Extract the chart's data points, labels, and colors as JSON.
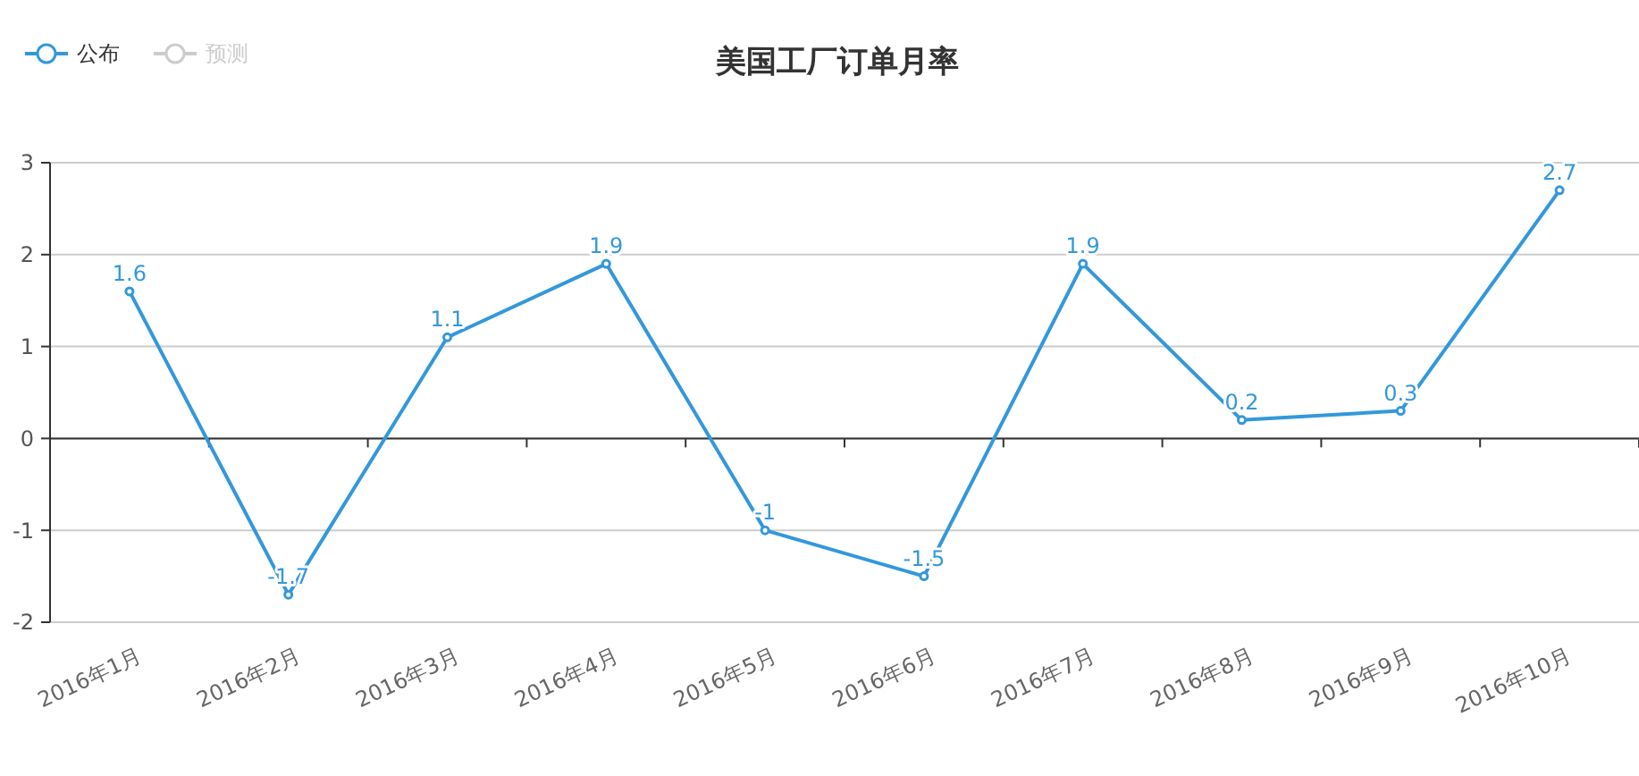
{
  "chart_data": {
    "type": "line",
    "title": "美国工厂订单月率",
    "categories": [
      "2016年1月",
      "2016年2月",
      "2016年3月",
      "2016年4月",
      "2016年5月",
      "2016年6月",
      "2016年7月",
      "2016年8月",
      "2016年9月",
      "2016年10月"
    ],
    "series": [
      {
        "name": "公布",
        "color": "#3398db",
        "values": [
          1.6,
          -1.7,
          1.1,
          1.9,
          -1,
          -1.5,
          1.9,
          0.2,
          0.3,
          2.7
        ]
      },
      {
        "name": "预测",
        "color": "#cccccc",
        "values": [
          null,
          null,
          null,
          null,
          null,
          null,
          null,
          null,
          null,
          null
        ]
      }
    ],
    "ylim": [
      -2,
      3
    ],
    "yticks": [
      -2,
      -1,
      0,
      1,
      2,
      3
    ],
    "grid": "y",
    "legend": "top left",
    "marker": "circle",
    "line_style": "solid",
    "data_labels": true
  }
}
